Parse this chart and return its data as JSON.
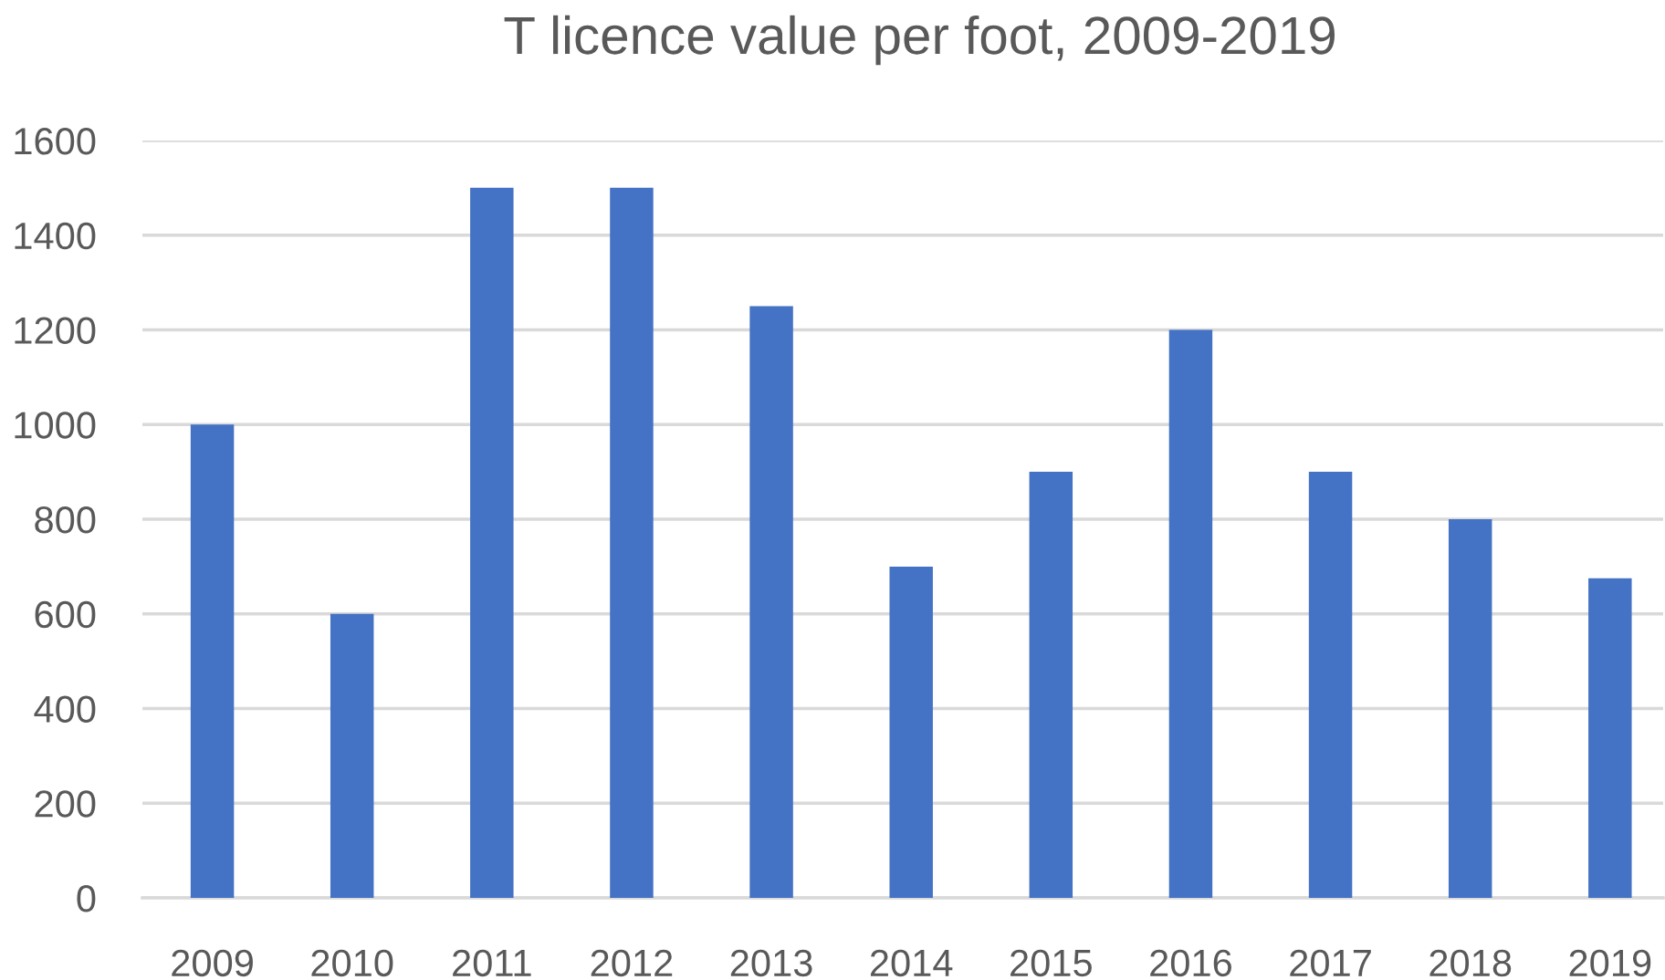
{
  "chart_data": {
    "type": "bar",
    "title": "T licence value per foot, 2009-2019",
    "categories": [
      "2009",
      "2010",
      "2011",
      "2012",
      "2013",
      "2014",
      "2015",
      "2016",
      "2017",
      "2018",
      "2019"
    ],
    "values": [
      1000,
      600,
      1500,
      1500,
      1250,
      700,
      900,
      1200,
      900,
      800,
      675
    ],
    "color": "#4472c4",
    "ylim": [
      0,
      1600
    ],
    "yticks": [
      0,
      200,
      400,
      600,
      800,
      1000,
      1200,
      1400,
      1600
    ],
    "grid": "y"
  }
}
